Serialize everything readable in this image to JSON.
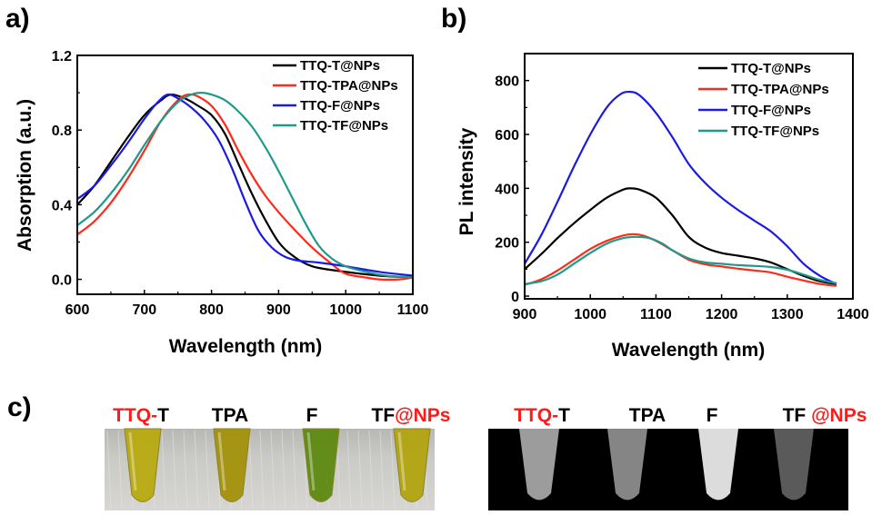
{
  "colors": {
    "black": "#000000",
    "red": "#ff2a1a",
    "blue": "#1a1ae6",
    "teal": "#1f9a8a",
    "highlight": "#ff1a1a"
  },
  "chart_data": [
    {
      "panel": "a)",
      "type": "line",
      "xlabel": "Wavelength (nm)",
      "ylabel": "Absorption (a.u.)",
      "xlim": [
        600,
        1100
      ],
      "ylim": [
        -0.08,
        1.2
      ],
      "xticks": [
        "600",
        "700",
        "800",
        "900",
        "1000",
        "1100"
      ],
      "yticks": [
        "0.0",
        "0.4",
        "0.8",
        "1.2"
      ],
      "legend_position": "top-right",
      "series": [
        {
          "name": "TTQ-T@NPs",
          "color": "black",
          "x": [
            600,
            625,
            650,
            675,
            700,
            725,
            740,
            760,
            780,
            800,
            820,
            840,
            860,
            880,
            900,
            920,
            950,
            1000,
            1050,
            1100
          ],
          "y": [
            0.4,
            0.5,
            0.63,
            0.76,
            0.88,
            0.96,
            0.99,
            0.97,
            0.93,
            0.88,
            0.78,
            0.62,
            0.46,
            0.32,
            0.2,
            0.13,
            0.07,
            0.04,
            0.02,
            0.01
          ]
        },
        {
          "name": "TTQ-TPA@NPs",
          "color": "red",
          "x": [
            600,
            625,
            650,
            675,
            700,
            725,
            750,
            765,
            780,
            800,
            820,
            840,
            860,
            880,
            900,
            920,
            950,
            980,
            1000,
            1030,
            1050,
            1080,
            1100
          ],
          "y": [
            0.24,
            0.31,
            0.41,
            0.54,
            0.69,
            0.85,
            0.96,
            0.99,
            0.98,
            0.93,
            0.83,
            0.69,
            0.56,
            0.45,
            0.36,
            0.28,
            0.17,
            0.08,
            0.03,
            0.01,
            0.0,
            0.0,
            0.01
          ]
        },
        {
          "name": "TTQ-F@NPs",
          "color": "blue",
          "x": [
            600,
            625,
            650,
            675,
            700,
            720,
            735,
            750,
            770,
            790,
            810,
            830,
            850,
            870,
            890,
            910,
            930,
            960,
            1000,
            1050,
            1100
          ],
          "y": [
            0.43,
            0.5,
            0.61,
            0.73,
            0.86,
            0.95,
            0.99,
            0.97,
            0.92,
            0.85,
            0.75,
            0.6,
            0.42,
            0.26,
            0.17,
            0.12,
            0.1,
            0.09,
            0.07,
            0.04,
            0.02
          ]
        },
        {
          "name": "TTQ-TF@NPs",
          "color": "teal",
          "x": [
            600,
            625,
            650,
            675,
            700,
            725,
            750,
            770,
            785,
            800,
            820,
            840,
            860,
            880,
            900,
            920,
            940,
            960,
            980,
            1000,
            1030,
            1060,
            1100
          ],
          "y": [
            0.29,
            0.36,
            0.46,
            0.58,
            0.72,
            0.85,
            0.95,
            0.99,
            1.0,
            0.99,
            0.96,
            0.9,
            0.82,
            0.71,
            0.58,
            0.44,
            0.3,
            0.18,
            0.11,
            0.07,
            0.04,
            0.02,
            0.01
          ]
        }
      ]
    },
    {
      "panel": "b)",
      "type": "line",
      "xlabel": "Wavelength (nm)",
      "ylabel": "PL intensity",
      "xlim": [
        900,
        1400
      ],
      "ylim": [
        -10,
        900
      ],
      "xticks": [
        "900",
        "1000",
        "1100",
        "1200",
        "1300",
        "1400"
      ],
      "yticks": [
        "0",
        "200",
        "400",
        "600",
        "800"
      ],
      "legend_position": "top-right",
      "series": [
        {
          "name": "TTQ-T@NPs",
          "color": "black",
          "x": [
            900,
            925,
            950,
            975,
            1000,
            1025,
            1050,
            1060,
            1075,
            1100,
            1125,
            1150,
            1175,
            1200,
            1225,
            1250,
            1275,
            1300,
            1325,
            1350,
            1375
          ],
          "y": [
            100,
            155,
            215,
            270,
            320,
            365,
            395,
            400,
            395,
            365,
            300,
            220,
            180,
            160,
            150,
            140,
            125,
            100,
            75,
            55,
            45
          ]
        },
        {
          "name": "TTQ-TPA@NPs",
          "color": "red",
          "x": [
            900,
            925,
            950,
            975,
            1000,
            1025,
            1050,
            1065,
            1080,
            1100,
            1125,
            1150,
            1175,
            1200,
            1225,
            1250,
            1275,
            1300,
            1325,
            1350,
            1375
          ],
          "y": [
            42,
            62,
            95,
            135,
            175,
            205,
            225,
            230,
            225,
            205,
            170,
            135,
            118,
            110,
            102,
            95,
            88,
            72,
            58,
            45,
            38
          ]
        },
        {
          "name": "TTQ-F@NPs",
          "color": "blue",
          "x": [
            900,
            925,
            950,
            975,
            1000,
            1025,
            1045,
            1060,
            1075,
            1100,
            1125,
            1150,
            1175,
            1200,
            1225,
            1250,
            1275,
            1300,
            1325,
            1350,
            1375
          ],
          "y": [
            120,
            225,
            350,
            480,
            600,
            700,
            748,
            758,
            745,
            680,
            590,
            490,
            420,
            365,
            320,
            280,
            240,
            185,
            120,
            75,
            45
          ]
        },
        {
          "name": "TTQ-TF@NPs",
          "color": "teal",
          "x": [
            900,
            925,
            950,
            975,
            1000,
            1025,
            1050,
            1070,
            1090,
            1110,
            1125,
            1150,
            1175,
            1200,
            1225,
            1250,
            1275,
            1300,
            1325,
            1350,
            1375
          ],
          "y": [
            45,
            55,
            80,
            120,
            160,
            195,
            215,
            220,
            215,
            195,
            170,
            140,
            125,
            120,
            115,
            112,
            108,
            98,
            80,
            60,
            48
          ]
        }
      ]
    }
  ],
  "panel_c": {
    "letter": "c)",
    "left_labels": [
      {
        "parts": [
          {
            "text": "TTQ-",
            "color": "highlight"
          },
          {
            "text": "T",
            "color": "black"
          }
        ]
      },
      {
        "parts": [
          {
            "text": "TPA",
            "color": "black"
          }
        ]
      },
      {
        "parts": [
          {
            "text": "F",
            "color": "black"
          }
        ]
      },
      {
        "parts": [
          {
            "text": "TF",
            "color": "black"
          },
          {
            "text": "@NPs",
            "color": "highlight"
          }
        ]
      }
    ],
    "right_labels": [
      {
        "parts": [
          {
            "text": "TTQ-",
            "color": "highlight"
          },
          {
            "text": "T",
            "color": "black"
          }
        ]
      },
      {
        "parts": [
          {
            "text": "TPA",
            "color": "black"
          }
        ]
      },
      {
        "parts": [
          {
            "text": "F",
            "color": "black"
          }
        ]
      },
      {
        "parts": [
          {
            "text": "TF ",
            "color": "black"
          },
          {
            "text": "@NPs",
            "color": "highlight"
          }
        ]
      }
    ],
    "vial_colors": [
      "#b9aa10",
      "#a4920a",
      "#5e8a12",
      "#b3a410"
    ],
    "glow_levels": [
      0.62,
      0.5,
      0.95,
      0.28
    ]
  }
}
